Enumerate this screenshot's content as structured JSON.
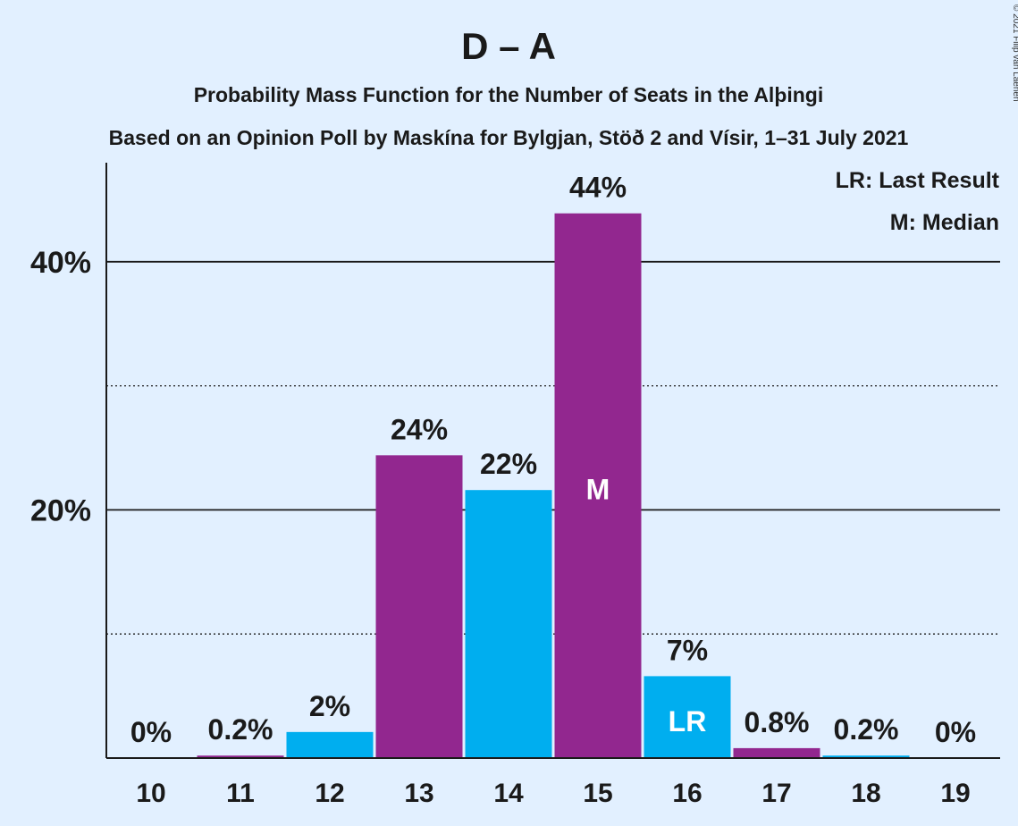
{
  "chart_data": {
    "type": "bar",
    "title": "D – A",
    "subtitle": "Probability Mass Function for the Number of Seats in the Alþingi",
    "subtitle2": "Based on an Opinion Poll by Maskína for Bylgjan, Stöð 2 and Vísir, 1–31 July 2021",
    "categories": [
      "10",
      "11",
      "12",
      "13",
      "14",
      "15",
      "16",
      "17",
      "18",
      "19"
    ],
    "values": [
      0,
      0.2,
      2.1,
      24.4,
      21.6,
      43.9,
      6.6,
      0.8,
      0.2,
      0
    ],
    "data_labels": [
      "0%",
      "0.2%",
      "2%",
      "24%",
      "22%",
      "44%",
      "7%",
      "0.8%",
      "0.2%",
      "0%"
    ],
    "bar_colors": [
      "#92278f",
      "#92278f",
      "#00aeef",
      "#92278f",
      "#00aeef",
      "#92278f",
      "#00aeef",
      "#92278f",
      "#00aeef",
      "#92278f"
    ],
    "median_index": 5,
    "median_marker": "M",
    "last_result_index": 6,
    "last_result_marker": "LR",
    "ylim": [
      0,
      48
    ],
    "yticks": [
      20,
      40
    ],
    "ytick_labels": [
      "20%",
      "40%"
    ],
    "minor_gridlines": [
      10,
      30
    ],
    "legend": [
      "LR: Last Result",
      "M: Median"
    ],
    "legend_position": "top-right",
    "copyright": "© 2021 Filip van Laenen"
  }
}
